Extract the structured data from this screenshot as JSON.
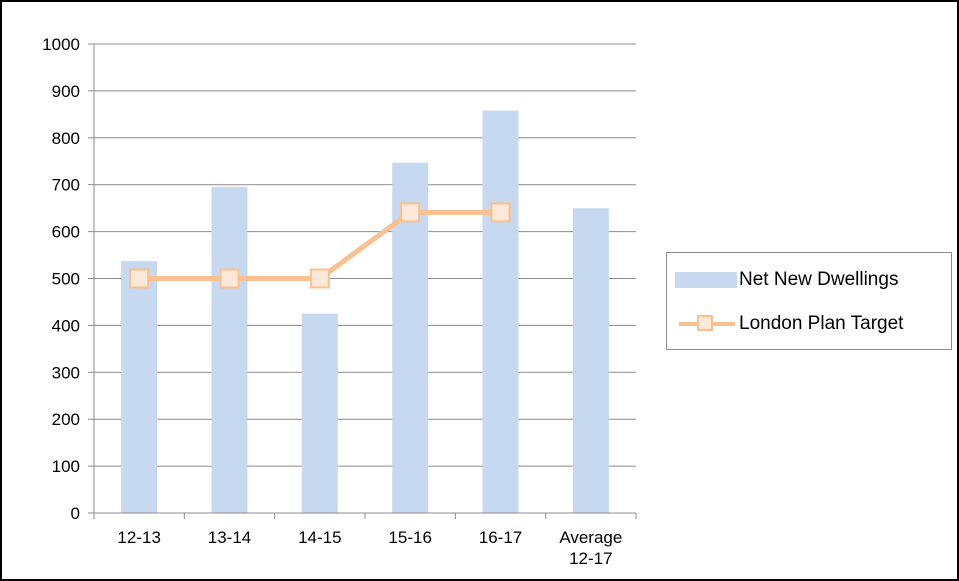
{
  "chart_data": {
    "type": "bar",
    "title": "",
    "xlabel": "",
    "ylabel": "",
    "ylim": [
      0,
      1000
    ],
    "yticks": [
      0,
      100,
      200,
      300,
      400,
      500,
      600,
      700,
      800,
      900,
      1000
    ],
    "categories": [
      [
        "12-13"
      ],
      [
        "13-14"
      ],
      [
        "14-15"
      ],
      [
        "15-16"
      ],
      [
        "16-17"
      ],
      [
        "Average",
        "12-17"
      ]
    ],
    "grid": true,
    "legend_position": "right",
    "series": [
      {
        "name": "Net New Dwellings",
        "kind": "bar",
        "color": "#c6d9f1",
        "values": [
          537,
          695,
          425,
          747,
          858,
          650
        ]
      },
      {
        "name": "London Plan Target",
        "kind": "line",
        "color": "#fac090",
        "marker_fill": "#fde9d9",
        "values": [
          500,
          500,
          500,
          641,
          641,
          null
        ]
      }
    ]
  }
}
